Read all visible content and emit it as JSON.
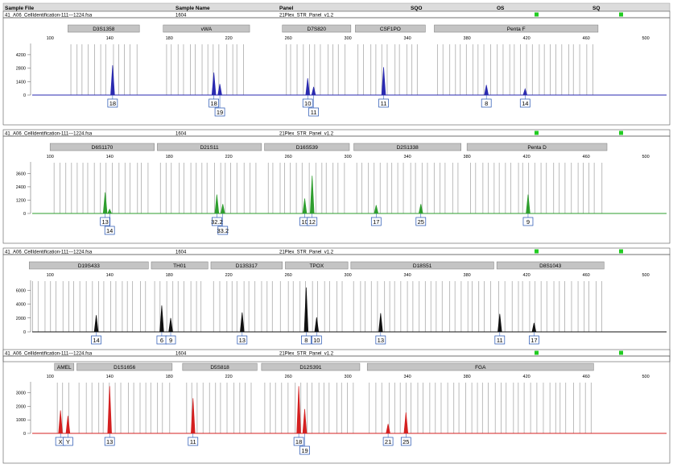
{
  "header": {
    "columns": [
      "Sample File",
      "Sample Name",
      "Panel",
      "SQO",
      "OS",
      "SQ"
    ]
  },
  "colors": {
    "header_bg": "#dcdcdc",
    "qc_green": "#22cc22",
    "marker_bg": "#c4c4c4",
    "bin": "#b4b4b4",
    "label_box": "#1f4fb0"
  },
  "chart_data": [
    {
      "type": "line",
      "name": "panel-1-blue",
      "sample_file": "41_A06_CellIdentification-111---1224.fsa",
      "sample_name": "1604",
      "panel": "21Plex_STR_Panel_v1.2",
      "color": "#2a2ab0",
      "x_ticks": [
        "100",
        "140",
        "180",
        "220",
        "260",
        "300",
        "340",
        "380",
        "420",
        "460",
        "500"
      ],
      "y_ticks": [
        "4200",
        "2800",
        "1400",
        "0"
      ],
      "ylim": [
        0,
        5200
      ],
      "markers": [
        {
          "name": "D3S1358",
          "start": 112,
          "end": 160
        },
        {
          "name": "vWA",
          "start": 176,
          "end": 234
        },
        {
          "name": "D7S820",
          "start": 256,
          "end": 302
        },
        {
          "name": "CSF1PO",
          "start": 305,
          "end": 352
        },
        {
          "name": "Penta F",
          "start": 358,
          "end": 468
        }
      ],
      "peaks": [
        {
          "x": 142,
          "height": 3100
        },
        {
          "x": 210,
          "height": 2350
        },
        {
          "x": 214,
          "height": 1150
        },
        {
          "x": 273,
          "height": 1750
        },
        {
          "x": 277,
          "height": 850
        },
        {
          "x": 324,
          "height": 2900
        },
        {
          "x": 393,
          "height": 1050
        },
        {
          "x": 419,
          "height": 650
        }
      ],
      "alleles": [
        {
          "label": "18",
          "x": 142,
          "row": 1
        },
        {
          "label": "18",
          "x": 210,
          "row": 1
        },
        {
          "label": "19",
          "x": 214,
          "row": 2
        },
        {
          "label": "10",
          "x": 273,
          "row": 1
        },
        {
          "label": "11",
          "x": 277,
          "row": 2
        },
        {
          "label": "11",
          "x": 324,
          "row": 1
        },
        {
          "label": "8",
          "x": 393,
          "row": 1
        },
        {
          "label": "14",
          "x": 419,
          "row": 1
        }
      ]
    },
    {
      "type": "line",
      "name": "panel-2-green",
      "sample_file": "41_A06_CellIdentification-111---1224.fsa",
      "sample_name": "1604",
      "panel": "21Plex_STR_Panel_v1.2",
      "color": "#2e9e2e",
      "x_ticks": [
        "100",
        "140",
        "180",
        "220",
        "260",
        "300",
        "340",
        "380",
        "420",
        "460",
        "500"
      ],
      "y_ticks": [
        "3600",
        "2400",
        "1200",
        "0"
      ],
      "ylim": [
        0,
        4500
      ],
      "markers": [
        {
          "name": "D6S1170",
          "start": 100,
          "end": 170
        },
        {
          "name": "D21S11",
          "start": 172,
          "end": 242
        },
        {
          "name": "D16S539",
          "start": 244,
          "end": 301
        },
        {
          "name": "D2S1338",
          "start": 304,
          "end": 376
        },
        {
          "name": "Penta D",
          "start": 380,
          "end": 474
        }
      ],
      "peaks": [
        {
          "x": 137,
          "height": 1900
        },
        {
          "x": 140,
          "height": 380
        },
        {
          "x": 212,
          "height": 1700
        },
        {
          "x": 216,
          "height": 850
        },
        {
          "x": 271,
          "height": 1350
        },
        {
          "x": 276,
          "height": 3400
        },
        {
          "x": 319,
          "height": 750
        },
        {
          "x": 349,
          "height": 850
        },
        {
          "x": 421,
          "height": 1700
        }
      ],
      "alleles": [
        {
          "label": "13",
          "x": 137,
          "row": 1
        },
        {
          "label": "14",
          "x": 140,
          "row": 2
        },
        {
          "label": "32.2",
          "x": 212,
          "row": 1
        },
        {
          "label": "33.2",
          "x": 216,
          "row": 2
        },
        {
          "label": "10",
          "x": 271,
          "row": 1
        },
        {
          "label": "12",
          "x": 276,
          "row": 1
        },
        {
          "label": "17",
          "x": 319,
          "row": 1
        },
        {
          "label": "25",
          "x": 349,
          "row": 1
        },
        {
          "label": "9",
          "x": 421,
          "row": 1
        }
      ]
    },
    {
      "type": "line",
      "name": "panel-3-black",
      "sample_file": "41_A06_CellIdentification-111---1224.fsa",
      "sample_name": "1604",
      "panel": "21Plex_STR_Panel_v1.2",
      "color": "#111111",
      "x_ticks": [
        "100",
        "140",
        "180",
        "220",
        "260",
        "300",
        "340",
        "380",
        "420",
        "460",
        "500"
      ],
      "y_ticks": [
        "6000",
        "4000",
        "2000",
        "0"
      ],
      "ylim": [
        0,
        7200
      ],
      "markers": [
        {
          "name": "D19S433",
          "start": 86,
          "end": 166
        },
        {
          "name": "TH01",
          "start": 168,
          "end": 206
        },
        {
          "name": "D13S317",
          "start": 208,
          "end": 256
        },
        {
          "name": "TPOX",
          "start": 258,
          "end": 300
        },
        {
          "name": "D18S51",
          "start": 302,
          "end": 398
        },
        {
          "name": "D8S1043",
          "start": 400,
          "end": 472
        }
      ],
      "peaks": [
        {
          "x": 131,
          "height": 2400
        },
        {
          "x": 175,
          "height": 3800
        },
        {
          "x": 181,
          "height": 2000
        },
        {
          "x": 229,
          "height": 2800
        },
        {
          "x": 272,
          "height": 6400
        },
        {
          "x": 279,
          "height": 2100
        },
        {
          "x": 322,
          "height": 2700
        },
        {
          "x": 402,
          "height": 2600
        },
        {
          "x": 425,
          "height": 1300
        }
      ],
      "alleles": [
        {
          "label": "14",
          "x": 131,
          "row": 1
        },
        {
          "label": "6",
          "x": 175,
          "row": 1
        },
        {
          "label": "9",
          "x": 181,
          "row": 1
        },
        {
          "label": "13",
          "x": 229,
          "row": 1
        },
        {
          "label": "8",
          "x": 272,
          "row": 1
        },
        {
          "label": "10",
          "x": 279,
          "row": 1
        },
        {
          "label": "13",
          "x": 322,
          "row": 1
        },
        {
          "label": "11",
          "x": 402,
          "row": 1
        },
        {
          "label": "17",
          "x": 425,
          "row": 1
        }
      ]
    },
    {
      "type": "line",
      "name": "panel-4-red",
      "sample_file": "41_A06_CellIdentification-111---1224.fsa",
      "sample_name": "1604",
      "panel": "21Plex_STR_Panel_v1.2",
      "color": "#d42020",
      "x_ticks": [
        "100",
        "140",
        "180",
        "220",
        "260",
        "300",
        "340",
        "380",
        "420",
        "460",
        "500"
      ],
      "y_ticks": [
        "3000",
        "2000",
        "1000",
        "0"
      ],
      "ylim": [
        0,
        3700
      ],
      "markers": [
        {
          "name": "AMEL",
          "start": 103,
          "end": 116
        },
        {
          "name": "D1S1656",
          "start": 118,
          "end": 182
        },
        {
          "name": "D5S818",
          "start": 189,
          "end": 239
        },
        {
          "name": "D12S391",
          "start": 242,
          "end": 308
        },
        {
          "name": "FGA",
          "start": 313,
          "end": 465
        }
      ],
      "peaks": [
        {
          "x": 107,
          "height": 1700
        },
        {
          "x": 112,
          "height": 1300
        },
        {
          "x": 140,
          "height": 3500
        },
        {
          "x": 196,
          "height": 2600
        },
        {
          "x": 267,
          "height": 3500
        },
        {
          "x": 271,
          "height": 1800
        },
        {
          "x": 327,
          "height": 700
        },
        {
          "x": 339,
          "height": 1550
        }
      ],
      "alleles": [
        {
          "label": "X",
          "x": 107,
          "row": 1
        },
        {
          "label": "Y",
          "x": 112,
          "row": 1
        },
        {
          "label": "13",
          "x": 140,
          "row": 1
        },
        {
          "label": "11",
          "x": 196,
          "row": 1
        },
        {
          "label": "18",
          "x": 267,
          "row": 1
        },
        {
          "label": "19",
          "x": 271,
          "row": 2
        },
        {
          "label": "21",
          "x": 327,
          "row": 1
        },
        {
          "label": "25",
          "x": 339,
          "row": 1
        }
      ]
    }
  ]
}
